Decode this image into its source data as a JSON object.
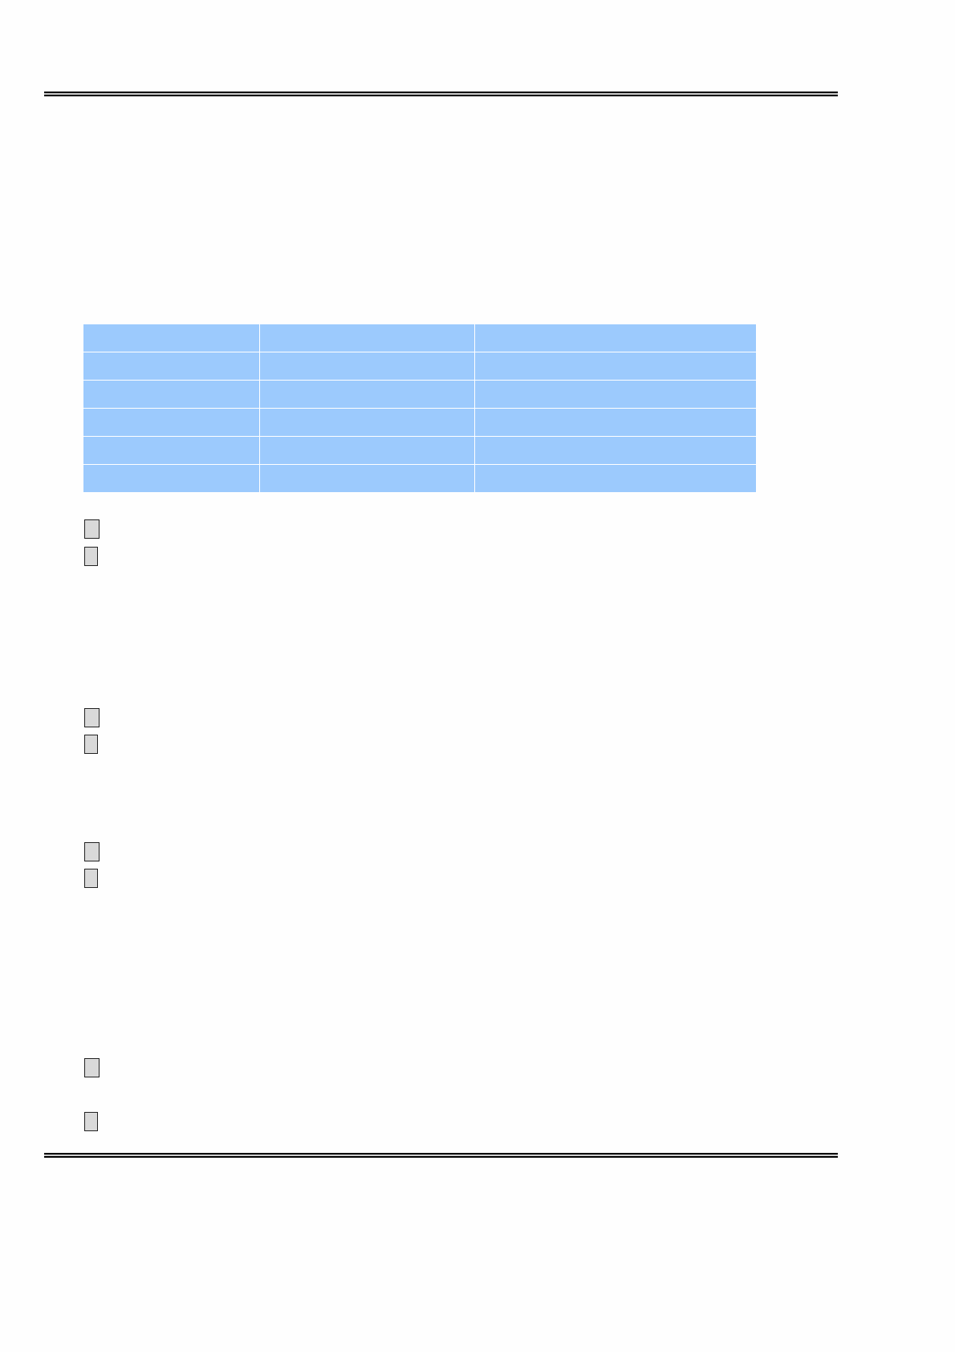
{
  "colors": {
    "table_fill": "#9ccafd",
    "checkbox_fill": "#d9d9d9",
    "rule": "#000000"
  },
  "table": {
    "columns": 3,
    "rows": [
      [
        "",
        "",
        ""
      ],
      [
        "",
        "",
        ""
      ],
      [
        "",
        "",
        ""
      ],
      [
        "",
        "",
        ""
      ],
      [
        "",
        "",
        ""
      ],
      [
        "",
        "",
        ""
      ]
    ]
  },
  "checkboxes": [
    {
      "checked": false
    },
    {
      "checked": false
    },
    {
      "checked": false
    },
    {
      "checked": false
    },
    {
      "checked": false
    },
    {
      "checked": false
    },
    {
      "checked": false
    },
    {
      "checked": false
    }
  ]
}
